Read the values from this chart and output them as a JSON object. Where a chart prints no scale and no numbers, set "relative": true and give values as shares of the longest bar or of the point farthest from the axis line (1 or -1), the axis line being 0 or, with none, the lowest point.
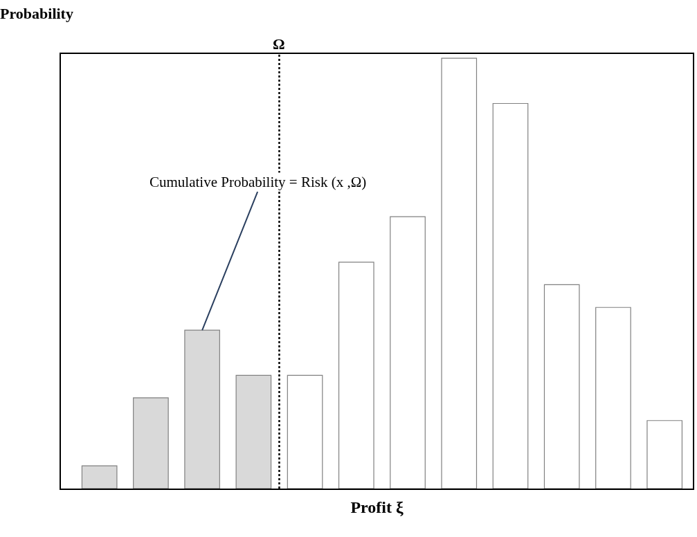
{
  "chart_data": {
    "type": "bar",
    "relative": true,
    "xlabel": "Profit ξ",
    "ylabel": "Probability",
    "categories": [
      null,
      null,
      null,
      null,
      null,
      null,
      null,
      null,
      null,
      null,
      null,
      null
    ],
    "values": [
      0.053,
      0.211,
      0.368,
      0.263,
      0.263,
      0.526,
      0.632,
      1,
      0.895,
      0.474,
      0.421,
      0.158
    ],
    "colors": [
      "#d9d9d9",
      "#d9d9d9",
      "#d9d9d9",
      "#d9d9d9",
      "#ffffff",
      "#ffffff",
      "#ffffff",
      "#ffffff",
      "#ffffff",
      "#ffffff",
      "#ffffff",
      "#ffffff"
    ],
    "annotations": [
      "Ω",
      "Cumulative Probability = Risk (x ,Ω)"
    ],
    "legend": false
  }
}
